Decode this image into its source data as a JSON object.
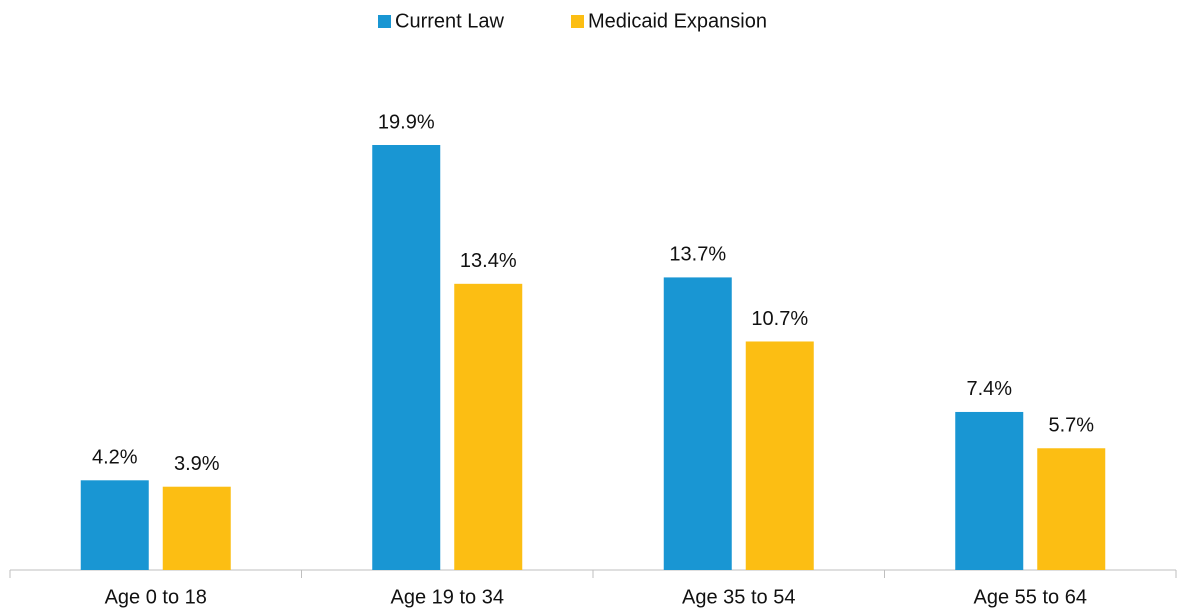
{
  "chart_data": {
    "type": "bar",
    "categories": [
      "Age 0 to 18",
      "Age 19 to 34",
      "Age 35 to 54",
      "Age 55 to 64"
    ],
    "series": [
      {
        "name": "Current Law",
        "color": "#1996d3",
        "values": [
          4.2,
          19.9,
          13.7,
          7.4
        ],
        "value_labels": [
          "4.2%",
          "19.9%",
          "13.7%",
          "7.4%"
        ]
      },
      {
        "name": "Medicaid Expansion",
        "color": "#fcbe13",
        "values": [
          3.9,
          13.4,
          10.7,
          5.7
        ],
        "value_labels": [
          "3.9%",
          "13.4%",
          "10.7%",
          "5.7%"
        ]
      }
    ],
    "legend": "top"
  }
}
